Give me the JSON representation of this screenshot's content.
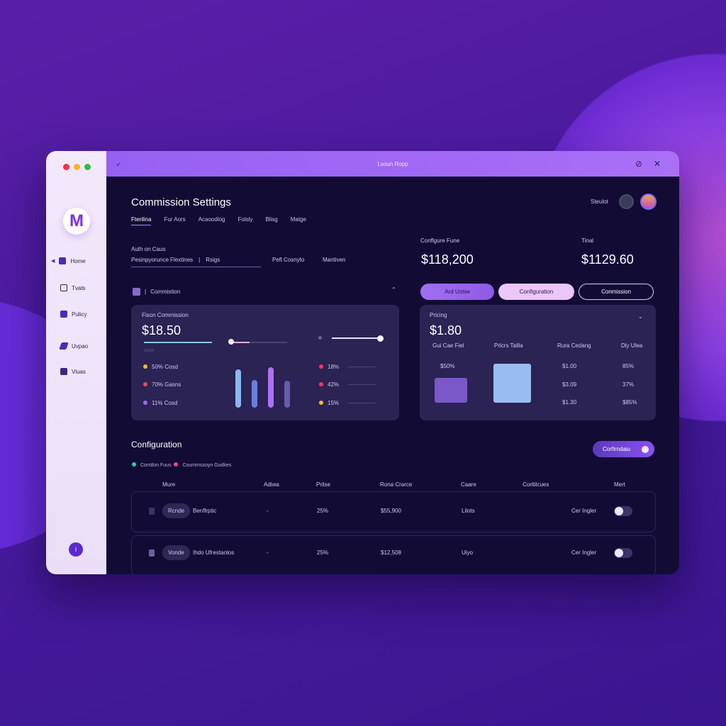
{
  "window": {
    "title": "Lsoun Ropp"
  },
  "sidebar": {
    "logo": "M",
    "items": [
      {
        "label": "Home",
        "icon": "home-icon"
      },
      {
        "label": "Tvats",
        "icon": "report-icon"
      },
      {
        "label": "Pulicy",
        "icon": "chart-icon"
      },
      {
        "label": "Uvpao",
        "icon": "plane-icon"
      },
      {
        "label": "Viuas",
        "icon": "image-icon"
      }
    ]
  },
  "header": {
    "title": "Commission Settings",
    "user_label": "Steulot",
    "tabs": [
      "Fterilina",
      "Fur Aors",
      "Acaoodiog",
      "Folsly",
      "Blisg",
      "Matge"
    ]
  },
  "filter": {
    "label": "Auth on Caus",
    "value": "Pesinpyorunce Flextines",
    "field2": "Rsigs",
    "field3": "Pefl Cosnyto",
    "field4": "Mantiven"
  },
  "stats": [
    {
      "label": "Conflgure Fune",
      "value": "$118,200"
    },
    {
      "label": "Tinal",
      "value": "$1129.60"
    }
  ],
  "actions": {
    "add": "Ard Uotse",
    "config": "Configuration",
    "commission": "Conmission"
  },
  "commission_section": {
    "label": "Commistion"
  },
  "commission_card": {
    "title": "Fison Commission",
    "value": "$18.50",
    "sub": "Usnn",
    "legend": [
      {
        "text": "50% Cosd",
        "color": "#f5b82a"
      },
      {
        "text": "70% Gasns",
        "color": "#e05050"
      },
      {
        "text": "11% Cosd",
        "color": "#9a6af0"
      }
    ],
    "bars": [
      {
        "value": 0.85,
        "color": "#8ab8f0"
      },
      {
        "value": 0.62,
        "color": "#6a7ee0"
      },
      {
        "value": 0.9,
        "color": "#b070f0"
      },
      {
        "value": 0.6,
        "color": "#6a5ab0"
      }
    ],
    "right": [
      {
        "text": "18%",
        "color": "#f03a5a"
      },
      {
        "text": "42%",
        "color": "#f03a5a"
      },
      {
        "text": "15%",
        "color": "#f5b82a"
      }
    ]
  },
  "pricing_card": {
    "title": "Pricing",
    "value": "$1.80",
    "cols": [
      "Gui Cae Fiel",
      "Prlcrs Tallla",
      "Rura Cedang",
      "Dly Ulea"
    ],
    "col1_value": "$50%",
    "rows": [
      [
        "$1.00",
        "85%"
      ],
      [
        "$3.09",
        "37%"
      ],
      [
        "$1.30",
        "$85%"
      ]
    ]
  },
  "config": {
    "title": "Configuration",
    "legend": [
      {
        "text": "Corstlon Fuus",
        "color": "#2ad0a0"
      },
      {
        "text": "Coummssoyn Gudkes",
        "color": "#f04a80"
      }
    ],
    "button": "Corfirndaiu",
    "columns": [
      "Mure",
      "Adiwa",
      "Prilse",
      "Rona Crarce",
      "Caare",
      "Coritilcues",
      "Mert"
    ],
    "rows": [
      {
        "tag": "Rcnde",
        "name": "Benflrptic",
        "action": "-",
        "price": "25%",
        "range": "$55,900",
        "care": "Lilots",
        "cond": "Cer Ingler",
        "on": false
      },
      {
        "tag": "Vonde",
        "name": "Ihdo Ufrestanlos",
        "action": "-",
        "price": "25%",
        "range": "$12,508",
        "care": "Uiyo",
        "cond": "Cer Ingler",
        "on": false
      }
    ]
  }
}
